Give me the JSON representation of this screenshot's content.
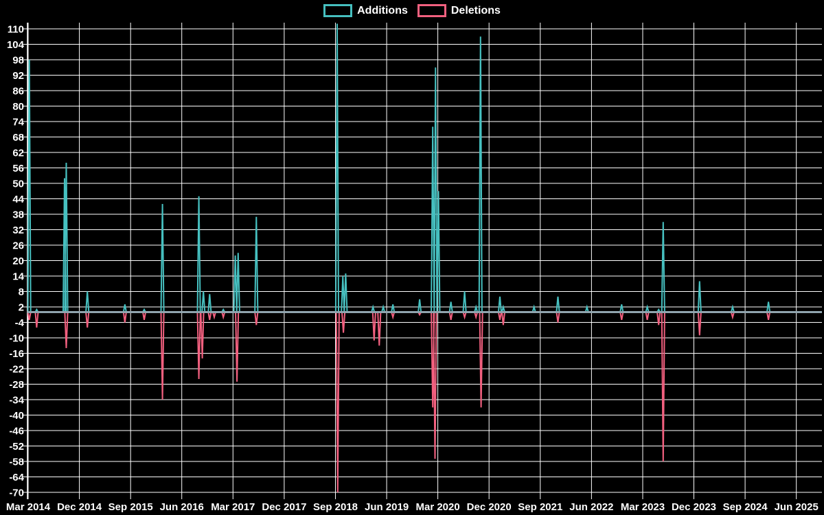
{
  "legend": {
    "additions_label": "Additions",
    "deletions_label": "Deletions"
  },
  "colors": {
    "background": "#000000",
    "additions": "#46c0c0",
    "deletions": "#f2607f",
    "grid": "#ffffff",
    "axis": "#ffffff",
    "zero_line": "#90a4ae",
    "text": "#ffffff"
  },
  "chart_data": {
    "type": "line",
    "title": "",
    "xlabel": "",
    "ylabel": "",
    "grid": true,
    "legend_position": "top",
    "ylim": [
      -70,
      112
    ],
    "y_ticks": [
      110,
      104,
      98,
      92,
      86,
      80,
      74,
      68,
      62,
      56,
      50,
      44,
      38,
      32,
      26,
      20,
      14,
      8,
      2,
      -4,
      -10,
      -16,
      -22,
      -28,
      -34,
      -40,
      -46,
      -52,
      -58,
      -64,
      -70
    ],
    "x_ticks": [
      {
        "label": "Mar 2014",
        "m": 0
      },
      {
        "label": "Dec 2014",
        "m": 9
      },
      {
        "label": "Sep 2015",
        "m": 18
      },
      {
        "label": "Jun 2016",
        "m": 27
      },
      {
        "label": "Mar 2017",
        "m": 36
      },
      {
        "label": "Dec 2017",
        "m": 45
      },
      {
        "label": "Sep 2018",
        "m": 54
      },
      {
        "label": "Jun 2019",
        "m": 63
      },
      {
        "label": "Mar 2020",
        "m": 72
      },
      {
        "label": "Dec 2020",
        "m": 81
      },
      {
        "label": "Sep 2021",
        "m": 90
      },
      {
        "label": "Jun 2022",
        "m": 99
      },
      {
        "label": "Mar 2023",
        "m": 108
      },
      {
        "label": "Dec 2023",
        "m": 117
      },
      {
        "label": "Sep 2024",
        "m": 126
      },
      {
        "label": "Jun 2025",
        "m": 135
      }
    ],
    "x_range_months": [
      0,
      139.4
    ],
    "series": [
      {
        "name": "Additions",
        "color_key": "additions",
        "baseline": 0,
        "spikes": [
          [
            0.2,
            98
          ],
          [
            1.5,
            1
          ],
          [
            6.4,
            52
          ],
          [
            6.7,
            58
          ],
          [
            10.4,
            8
          ],
          [
            17.0,
            3
          ],
          [
            20.4,
            1
          ],
          [
            23.6,
            42
          ],
          [
            30.0,
            45
          ],
          [
            30.8,
            8
          ],
          [
            31.9,
            7
          ],
          [
            34.3,
            1
          ],
          [
            36.4,
            22
          ],
          [
            36.9,
            23
          ],
          [
            40.1,
            37
          ],
          [
            54.3,
            112
          ],
          [
            55.3,
            14
          ],
          [
            55.8,
            15
          ],
          [
            60.6,
            2
          ],
          [
            62.4,
            2
          ],
          [
            64.1,
            3
          ],
          [
            68.8,
            5
          ],
          [
            71.1,
            72
          ],
          [
            71.6,
            95
          ],
          [
            72.1,
            47
          ],
          [
            74.3,
            4
          ],
          [
            76.7,
            8
          ],
          [
            78.7,
            2
          ],
          [
            79.5,
            107
          ],
          [
            82.9,
            6
          ],
          [
            83.5,
            2
          ],
          [
            88.9,
            2
          ],
          [
            93.1,
            6
          ],
          [
            98.2,
            2
          ],
          [
            104.3,
            3
          ],
          [
            108.8,
            2
          ],
          [
            110.8,
            1
          ],
          [
            111.6,
            35
          ],
          [
            118.0,
            12
          ],
          [
            123.8,
            2
          ],
          [
            130.1,
            4
          ]
        ]
      },
      {
        "name": "Deletions",
        "color_key": "deletions",
        "baseline": 0,
        "spikes": [
          [
            0.2,
            -3
          ],
          [
            1.5,
            -6
          ],
          [
            6.7,
            -14
          ],
          [
            10.4,
            -6
          ],
          [
            17.0,
            -4
          ],
          [
            20.4,
            -3
          ],
          [
            23.6,
            -34
          ],
          [
            30.0,
            -26
          ],
          [
            30.6,
            -18
          ],
          [
            31.9,
            -3
          ],
          [
            32.7,
            -2
          ],
          [
            34.3,
            -2
          ],
          [
            36.7,
            -27
          ],
          [
            40.1,
            -5
          ],
          [
            54.4,
            -70
          ],
          [
            55.4,
            -8
          ],
          [
            60.8,
            -11
          ],
          [
            61.7,
            -13
          ],
          [
            64.1,
            -2
          ],
          [
            68.8,
            -1
          ],
          [
            71.1,
            -37
          ],
          [
            71.5,
            -57
          ],
          [
            74.3,
            -3
          ],
          [
            76.7,
            -2
          ],
          [
            78.7,
            -2
          ],
          [
            79.6,
            -37
          ],
          [
            82.9,
            -3
          ],
          [
            83.5,
            -5
          ],
          [
            93.1,
            -4
          ],
          [
            104.3,
            -3
          ],
          [
            108.8,
            -3
          ],
          [
            110.8,
            -5
          ],
          [
            111.6,
            -58
          ],
          [
            118.0,
            -9
          ],
          [
            123.8,
            -2
          ],
          [
            130.1,
            -3
          ]
        ]
      }
    ]
  }
}
